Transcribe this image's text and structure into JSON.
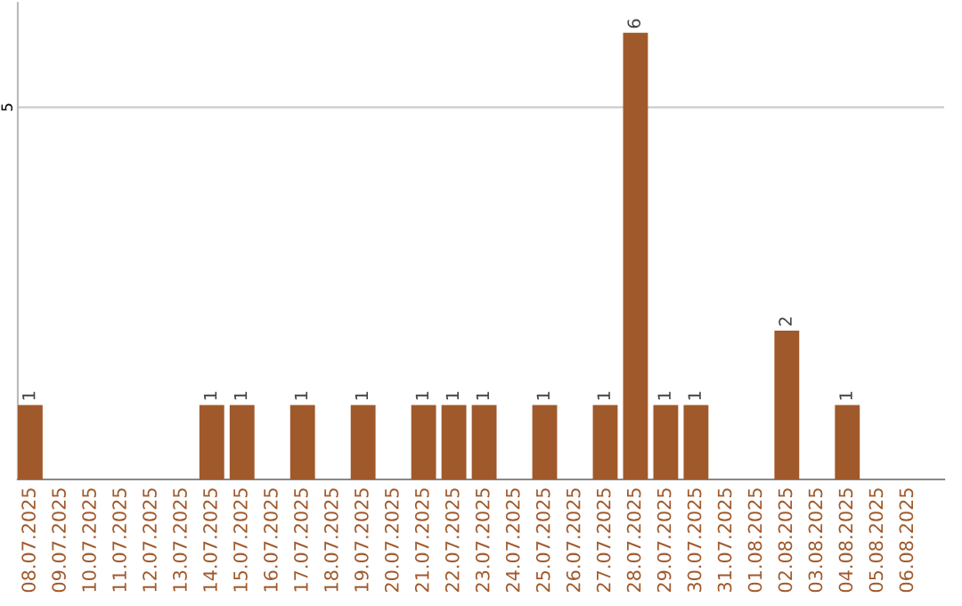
{
  "chart_data": {
    "type": "bar",
    "categories": [
      "08.07.2025",
      "09.07.2025",
      "10.07.2025",
      "11.07.2025",
      "12.07.2025",
      "13.07.2025",
      "14.07.2025",
      "15.07.2025",
      "16.07.2025",
      "17.07.2025",
      "18.07.2025",
      "19.07.2025",
      "20.07.2025",
      "21.07.2025",
      "22.07.2025",
      "23.07.2025",
      "24.07.2025",
      "25.07.2025",
      "26.07.2025",
      "27.07.2025",
      "28.07.2025",
      "29.07.2025",
      "30.07.2025",
      "31.07.2025",
      "01.08.2025",
      "02.08.2025",
      "03.08.2025",
      "04.08.2025",
      "05.08.2025",
      "06.08.2025"
    ],
    "values": [
      1,
      0,
      0,
      0,
      0,
      0,
      1,
      1,
      0,
      1,
      0,
      1,
      0,
      1,
      1,
      1,
      0,
      1,
      0,
      1,
      6,
      1,
      1,
      0,
      0,
      2,
      0,
      1,
      0,
      0
    ],
    "value_labels": [
      "1",
      null,
      null,
      null,
      null,
      null,
      "1",
      "1",
      null,
      "1",
      null,
      "1",
      null,
      "1",
      "1",
      "1",
      null,
      "1",
      null,
      "1",
      "6",
      "1",
      "1",
      null,
      null,
      "2",
      null,
      "1",
      null,
      null
    ],
    "color": "#a0592b",
    "ylim": [
      0,
      6.4
    ],
    "yticks": [
      5
    ],
    "grid": "y"
  }
}
